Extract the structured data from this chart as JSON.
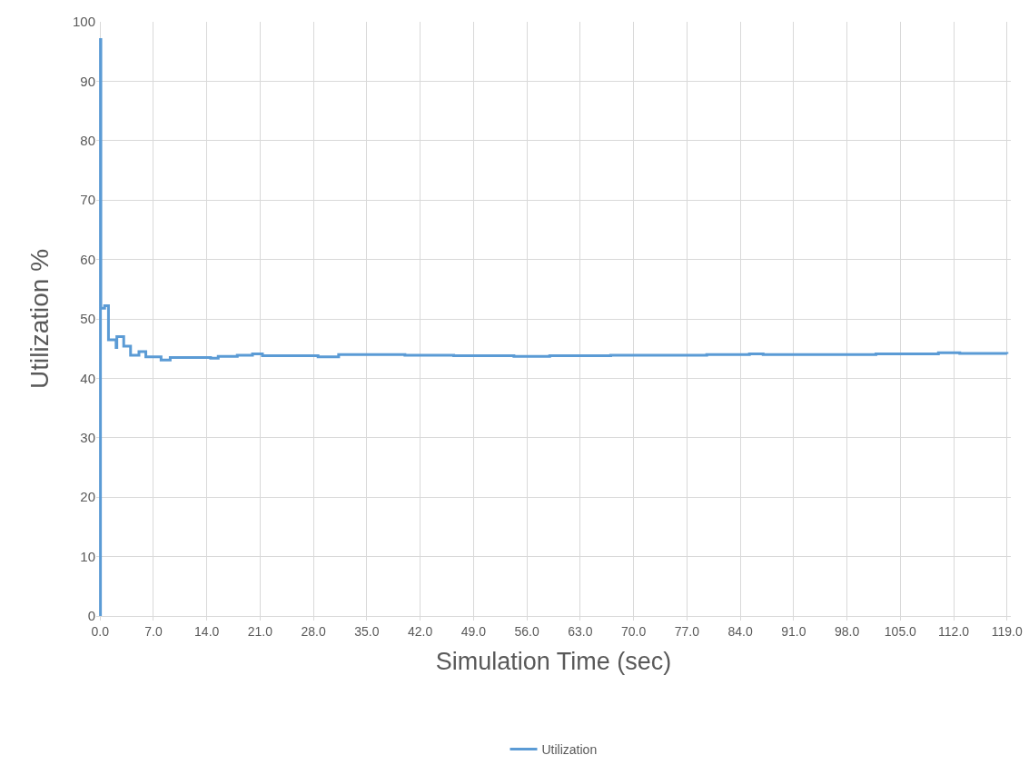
{
  "chart_data": {
    "type": "step",
    "xlabel": "Simulation Time (sec)",
    "ylabel": "Utilization %",
    "x": [
      0,
      0.05,
      0.1,
      0.6,
      1.1,
      2.1,
      2.2,
      3.1,
      4.0,
      5.1,
      6.0,
      8.0,
      9.2,
      14.5,
      15.5,
      18,
      20,
      21.3,
      24,
      28.6,
      31.3,
      38.4,
      40,
      46.4,
      54.3,
      59,
      67,
      74,
      79.6,
      85.2,
      87,
      101.8,
      110,
      112.8,
      119
    ],
    "series": [
      {
        "name": "Utilization",
        "color": "#5b9bd5",
        "values": [
          0,
          97,
          51.8,
          52.2,
          46.5,
          45.2,
          47,
          45.4,
          43.9,
          44.5,
          43.6,
          43.1,
          43.5,
          43.4,
          43.7,
          43.9,
          44.1,
          43.8,
          43.8,
          43.6,
          44.0,
          44.0,
          43.9,
          43.8,
          43.7,
          43.8,
          43.9,
          43.9,
          44.0,
          44.1,
          44.0,
          44.1,
          44.3,
          44.2,
          44.1
        ]
      }
    ],
    "xlim": [
      -0.5,
      119.5
    ],
    "xticks": [
      {
        "value": 0,
        "label": "0.0"
      },
      {
        "value": 7,
        "label": "7.0"
      },
      {
        "value": 14,
        "label": "14.0"
      },
      {
        "value": 21,
        "label": "21.0"
      },
      {
        "value": 28,
        "label": "28.0"
      },
      {
        "value": 35,
        "label": "35.0"
      },
      {
        "value": 42,
        "label": "42.0"
      },
      {
        "value": 49,
        "label": "49.0"
      },
      {
        "value": 56,
        "label": "56.0"
      },
      {
        "value": 63,
        "label": "63.0"
      },
      {
        "value": 70,
        "label": "70.0"
      },
      {
        "value": 77,
        "label": "77.0"
      },
      {
        "value": 84,
        "label": "84.0"
      },
      {
        "value": 91,
        "label": "91.0"
      },
      {
        "value": 98,
        "label": "98.0"
      },
      {
        "value": 105,
        "label": "105.0"
      },
      {
        "value": 112,
        "label": "112.0"
      },
      {
        "value": 119,
        "label": "119.0"
      }
    ],
    "ylim": [
      0,
      100
    ],
    "yticks": [
      0,
      10,
      20,
      30,
      40,
      50,
      60,
      70,
      80,
      90,
      100
    ],
    "grid": true,
    "legend": "bottom",
    "marker": "none",
    "line_style": "solid"
  }
}
